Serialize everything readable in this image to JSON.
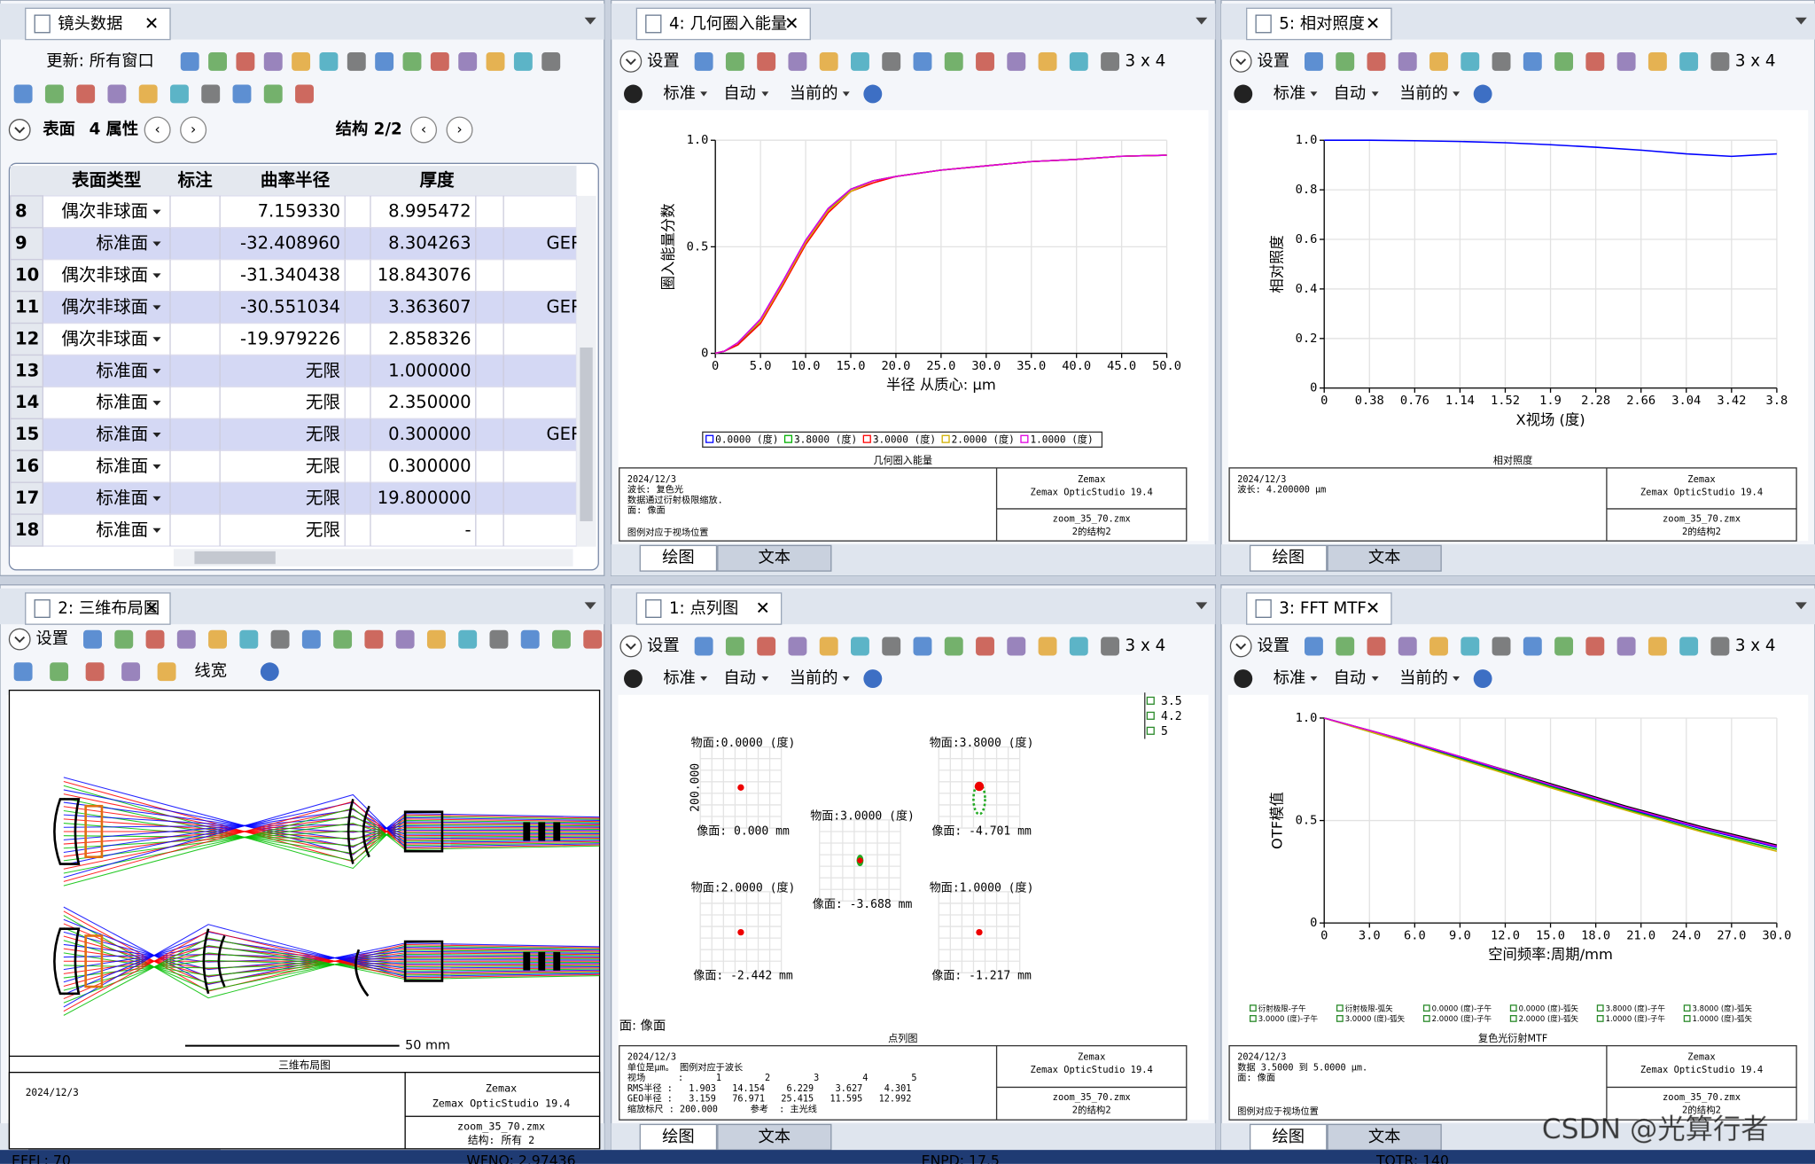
{
  "toolbar": {
    "settings": "设置",
    "standard": "标准",
    "auto": "自动",
    "current": "当前的",
    "grid_layout": "3 x 4",
    "line_width": "线宽"
  },
  "view_tabs": [
    "绘图",
    "文本"
  ],
  "windows": {
    "lens_data": {
      "tab": "镜头数据",
      "update": "更新: 所有窗口",
      "surface": "表面",
      "properties": "4 属性",
      "config": "结构 2/2",
      "columns": [
        "表面类型",
        "标注",
        "曲率半径",
        "厚度"
      ],
      "rows": [
        {
          "surface": "8",
          "type": "偶次非球面",
          "radius": "7.159330",
          "thickness": "8.995472"
        },
        {
          "surface": "9",
          "type": "标准面",
          "radius": "-32.408960",
          "thickness": "8.304263",
          "material": "GER"
        },
        {
          "surface": "10",
          "type": "偶次非球面",
          "radius": "-31.340438",
          "thickness": "18.843076"
        },
        {
          "surface": "11",
          "type": "偶次非球面",
          "radius": "-30.551034",
          "thickness": "3.363607",
          "material": "GER"
        },
        {
          "surface": "12",
          "type": "偶次非球面",
          "radius": "-19.979226",
          "thickness": "2.858326"
        },
        {
          "surface": "13",
          "type": "标准面",
          "radius": "无限",
          "thickness": "1.000000"
        },
        {
          "surface": "14",
          "type": "标准面",
          "radius": "无限",
          "thickness": "2.350000"
        },
        {
          "surface": "15",
          "type": "标准面",
          "radius": "无限",
          "thickness": "0.300000",
          "material": "GER"
        },
        {
          "surface": "16",
          "type": "标准面",
          "radius": "无限",
          "thickness": "0.300000"
        },
        {
          "surface": "17",
          "type": "标准面",
          "radius": "无限",
          "thickness": "19.800000"
        },
        {
          "surface": "18",
          "type": "标准面",
          "radius": "无限",
          "thickness": "-"
        }
      ]
    },
    "encircled_energy": {
      "tab": "4: 几何圈入能量",
      "chart": {
        "type": "line",
        "xlabel": "半径 从质心: µm",
        "ylabel": "圈入能量分数",
        "grid": true,
        "xlim": [
          0,
          50
        ],
        "ylim": [
          0,
          1
        ],
        "xticks": [
          0,
          {
            "value": 5,
            "label": "5.0"
          },
          {
            "value": 10,
            "label": "10.0"
          },
          {
            "value": 15,
            "label": "15.0"
          },
          {
            "value": 20,
            "label": "20.0"
          },
          {
            "value": 25,
            "label": "25.0"
          },
          {
            "value": 30,
            "label": "30.0"
          },
          {
            "value": 35,
            "label": "35.0"
          },
          {
            "value": 40,
            "label": "40.0"
          },
          {
            "value": 45,
            "label": "45.0"
          },
          {
            "value": 50,
            "label": "50.0"
          }
        ],
        "yticks": [
          0,
          0.5,
          {
            "value": 1,
            "label": "1.0"
          }
        ],
        "x": [
          0,
          1,
          2.5,
          5,
          7.5,
          10,
          12.5,
          15,
          17.5,
          20,
          25,
          30,
          35,
          40,
          45,
          50
        ],
        "series": [
          {
            "name": "0.0000 (度)",
            "color": "#0000ff",
            "values": [
              0,
              0.01,
              0.05,
              0.16,
              0.34,
              0.53,
              0.68,
              0.77,
              0.81,
              0.83,
              0.86,
              0.88,
              0.9,
              0.91,
              0.925,
              0.93
            ]
          },
          {
            "name": "3.8000 (度)",
            "color": "#00b000",
            "values": [
              0,
              0.01,
              0.04,
              0.15,
              0.33,
              0.52,
              0.67,
              0.77,
              0.81,
              0.83,
              0.86,
              0.88,
              0.9,
              0.91,
              0.925,
              0.93
            ]
          },
          {
            "name": "3.0000 (度)",
            "color": "#ff0000",
            "values": [
              0,
              0.01,
              0.04,
              0.14,
              0.32,
              0.51,
              0.66,
              0.76,
              0.8,
              0.83,
              0.86,
              0.88,
              0.9,
              0.91,
              0.925,
              0.93
            ]
          },
          {
            "name": "2.0000 (度)",
            "color": "#d0b000",
            "values": [
              0,
              0.01,
              0.05,
              0.15,
              0.33,
              0.52,
              0.67,
              0.76,
              0.81,
              0.83,
              0.86,
              0.88,
              0.9,
              0.91,
              0.925,
              0.93
            ]
          },
          {
            "name": "1.0000 (度)",
            "color": "#e000e0",
            "values": [
              0,
              0.01,
              0.05,
              0.16,
              0.34,
              0.53,
              0.68,
              0.77,
              0.81,
              0.83,
              0.86,
              0.88,
              0.9,
              0.91,
              0.925,
              0.93
            ]
          }
        ]
      },
      "footer": {
        "title": "几何圈入能量",
        "lines": [
          "2024/12/3",
          "波长: 复色光",
          "数据通过衍射极限缩放.",
          "面: 像面"
        ],
        "note": "图例对应于视场位置",
        "company": "Zemax",
        "product": "Zemax OpticStudio 19.4",
        "file": "zoom_35_70.zmx",
        "config": "2的结构2"
      }
    },
    "relative_illumination": {
      "tab": "5: 相对照度",
      "chart": {
        "type": "line",
        "xlabel": "X视场 (度)",
        "ylabel": "相对照度",
        "grid": true,
        "xlim": [
          0,
          3.8
        ],
        "ylim": [
          0,
          1
        ],
        "xticks": [
          0,
          0.38,
          0.76,
          1.14,
          1.52,
          1.9,
          2.28,
          2.66,
          3.04,
          3.42,
          3.8
        ],
        "yticks": [
          0,
          0.2,
          0.4,
          0.6,
          0.8,
          {
            "value": 1,
            "label": "1.0"
          }
        ],
        "x": [
          0,
          0.38,
          0.76,
          1.14,
          1.52,
          1.9,
          2.28,
          2.66,
          3.04,
          3.42,
          3.8
        ],
        "series": [
          {
            "color": "#0000ff",
            "values": [
              1,
              1,
              0.998,
              0.995,
              0.99,
              0.982,
              0.972,
              0.96,
              0.945,
              0.935,
              0.945
            ]
          }
        ]
      },
      "footer": {
        "title": "相对照度",
        "lines": [
          "2024/12/3",
          "波长: 4.200000 µm"
        ],
        "company": "Zemax",
        "product": "Zemax OpticStudio 19.4",
        "file": "zoom_35_70.zmx",
        "config": "2的结构2"
      }
    },
    "layout_3d": {
      "tab": "2: 三维布局图",
      "scale_bar": "50 mm",
      "footer": {
        "title": "三维布局图",
        "lines": [
          "2024/12/3"
        ],
        "company": "Zemax",
        "product": "Zemax OpticStudio 19.4",
        "file": "zoom_35_70.zmx",
        "config": "结构: 所有 2"
      }
    },
    "spot_diagram": {
      "tab": "1: 点列图",
      "scale": "200.000",
      "surface": "面: 像面",
      "wavelengths": [
        "3.5",
        "4.2",
        "5"
      ],
      "fields": [
        {
          "label": "物面:0.0000 (度)",
          "image": "像面: 0.000 mm"
        },
        {
          "label": "物面:3.8000 (度)",
          "image": "像面: -4.701 mm"
        },
        {
          "label": "物面:3.0000 (度)",
          "image": "像面: -3.688 mm"
        },
        {
          "label": "物面:2.0000 (度)",
          "image": "像面: -2.442 mm"
        },
        {
          "label": "物面:1.0000 (度)",
          "image": "像面: -1.217 mm"
        }
      ],
      "footer": {
        "title": "点列图",
        "lines": [
          "2024/12/3",
          "单位是µm。 图例对应于波长",
          "视场      :      1        2        3        4        5",
          "RMS半径 :   1.903   14.154    6.229    3.627    4.301",
          "GEO半径 :   3.159   76.971   25.415   11.595   12.992",
          "缩放标尺 : 200.000      参考  : 主光线"
        ],
        "company": "Zemax",
        "product": "Zemax OpticStudio 19.4",
        "file": "zoom_35_70.zmx",
        "config": "2的结构2"
      }
    },
    "fft_mtf": {
      "tab": "3: FFT MTF",
      "chart": {
        "type": "line",
        "xlabel": "空间频率:周期/mm",
        "ylabel": "OTF模值",
        "grid": true,
        "xlim": [
          0,
          30
        ],
        "ylim": [
          0,
          1
        ],
        "xticks": [
          0,
          {
            "value": 3,
            "label": "3.0"
          },
          {
            "value": 6,
            "label": "6.0"
          },
          {
            "value": 9,
            "label": "9.0"
          },
          {
            "value": 12,
            "label": "12.0"
          },
          {
            "value": 15,
            "label": "15.0"
          },
          {
            "value": 18,
            "label": "18.0"
          },
          {
            "value": 21,
            "label": "21.0"
          },
          {
            "value": 24,
            "label": "24.0"
          },
          {
            "value": 27,
            "label": "27.0"
          },
          {
            "value": 30,
            "label": "30.0"
          }
        ],
        "yticks": [
          0,
          0.5,
          {
            "value": 1,
            "label": "1.0"
          }
        ],
        "x": [
          0,
          5,
          10,
          15,
          20,
          25,
          30
        ],
        "series": [
          {
            "color": "#000000",
            "values": [
              1,
              0.9,
              0.79,
              0.68,
              0.57,
              0.47,
              0.38
            ]
          },
          {
            "color": "#0000ff",
            "values": [
              1,
              0.895,
              0.785,
              0.67,
              0.56,
              0.46,
              0.37
            ]
          },
          {
            "color": "#00b000",
            "values": [
              1,
              0.89,
              0.78,
              0.665,
              0.555,
              0.45,
              0.36
            ]
          },
          {
            "color": "#d0b000",
            "values": [
              1,
              0.89,
              0.775,
              0.66,
              0.55,
              0.445,
              0.35
            ]
          },
          {
            "color": "#e000e0",
            "values": [
              1,
              0.9,
              0.79,
              0.675,
              0.565,
              0.465,
              0.375
            ]
          }
        ],
        "legend": [
          "衍射极限-子午",
          "衍射极限-弧矢",
          "0.0000 (度)-子午",
          "0.0000 (度)-弧矢",
          "3.8000 (度)-子午",
          "3.8000 (度)-弧矢",
          "3.0000 (度)-子午",
          "3.0000 (度)-弧矢",
          "2.0000 (度)-子午",
          "2.0000 (度)-弧矢",
          "1.0000 (度)-子午",
          "1.0000 (度)-弧矢"
        ]
      },
      "footer": {
        "title": "复色光衍射MTF",
        "lines": [
          "2024/12/3",
          "数据 3.5000 到 5.0000 µm.",
          "面: 像面"
        ],
        "note": "图例对应于视场位置",
        "company": "Zemax",
        "product": "Zemax OpticStudio 19.4",
        "file": "zoom_35_70.zmx",
        "config": "2的结构2"
      }
    }
  },
  "status_bar": [
    "EFFL: 70",
    "WFNO: 2.97436",
    "ENPD: 17.5",
    "TOTR: 140"
  ],
  "watermark": "CSDN @光算行者"
}
